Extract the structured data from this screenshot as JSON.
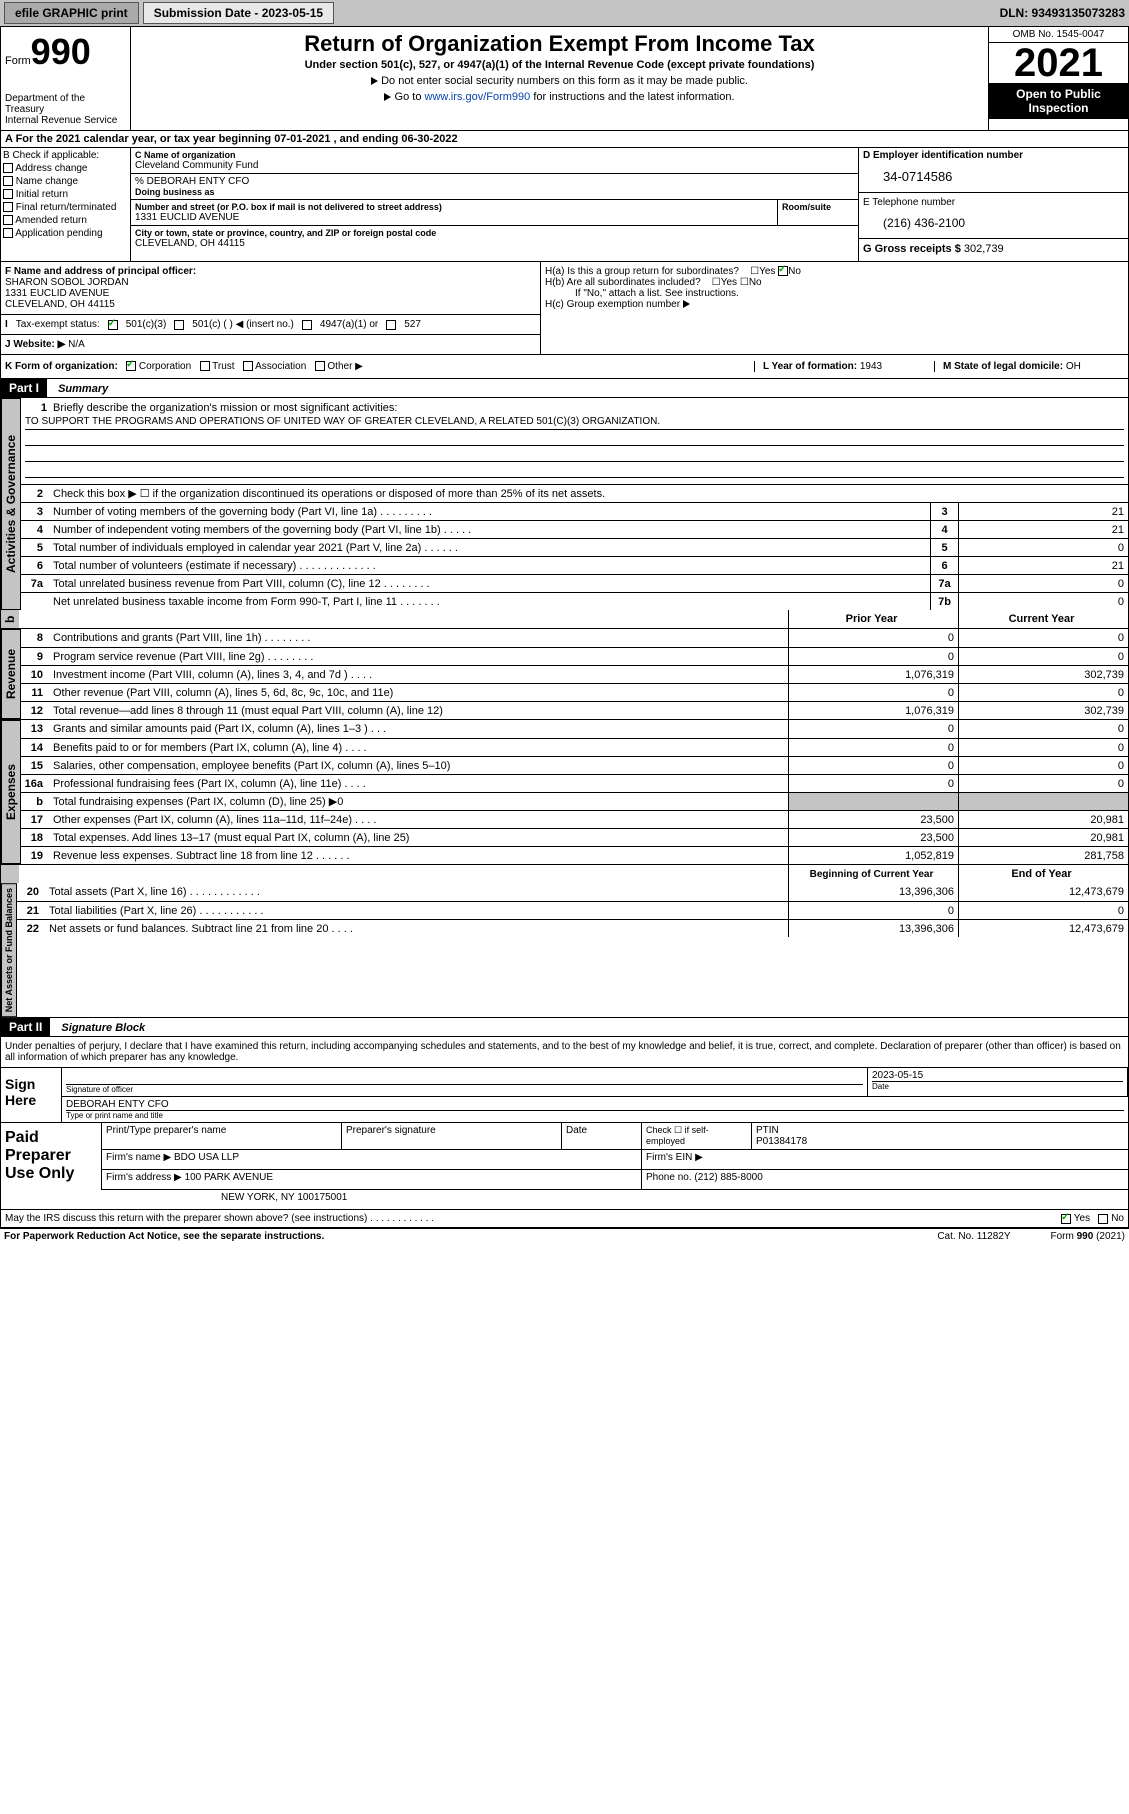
{
  "topbar": {
    "efile": "efile GRAPHIC print",
    "submission_label": "Submission Date - 2023-05-15",
    "dln": "DLN: 93493135073283"
  },
  "header": {
    "form_word": "Form",
    "form_num": "990",
    "dept": "Department of the Treasury\nInternal Revenue Service",
    "title": "Return of Organization Exempt From Income Tax",
    "subtitle": "Under section 501(c), 527, or 4947(a)(1) of the Internal Revenue Code (except private foundations)",
    "note1": "Do not enter social security numbers on this form as it may be made public.",
    "note2_a": "Go to ",
    "note2_link": "www.irs.gov/Form990",
    "note2_b": " for instructions and the latest information.",
    "omb": "OMB No. 1545-0047",
    "year": "2021",
    "public": "Open to Public Inspection"
  },
  "row_a": {
    "text": "A For the 2021 calendar year, or tax year beginning 07-01-2021   , and ending 06-30-2022"
  },
  "b": {
    "title": "B Check if applicable:",
    "items": [
      "Address change",
      "Name change",
      "Initial return",
      "Final return/terminated",
      "Amended return",
      "Application pending"
    ]
  },
  "c": {
    "name_label": "C Name of organization",
    "name": "Cleveland Community Fund",
    "care_of": "% DEBORAH ENTY CFO",
    "dba_label": "Doing business as",
    "street_label": "Number and street (or P.O. box if mail is not delivered to street address)",
    "room_label": "Room/suite",
    "street": "1331 EUCLID AVENUE",
    "city_label": "City or town, state or province, country, and ZIP or foreign postal code",
    "city": "CLEVELAND, OH  44115"
  },
  "d": {
    "ein_label": "D Employer identification number",
    "ein": "34-0714586",
    "phone_label": "E Telephone number",
    "phone": "(216) 436-2100",
    "gross_label": "G Gross receipts $ ",
    "gross": "302,739"
  },
  "f": {
    "label": "F Name and address of principal officer:",
    "name": "SHARON SOBOL JORDAN",
    "addr1": "1331 EUCLID AVENUE",
    "addr2": "CLEVELAND, OH  44115"
  },
  "h": {
    "a_label": "H(a)  Is this a group return for subordinates?",
    "b_label": "H(b)  Are all subordinates included?",
    "b_note": "If \"No,\" attach a list. See instructions.",
    "c_label": "H(c)  Group exemption number ",
    "yes": "Yes",
    "no": "No"
  },
  "i": {
    "label": "Tax-exempt status:",
    "opts": [
      "501(c)(3)",
      "501(c) (  ) ◀ (insert no.)",
      "4947(a)(1) or",
      "527"
    ]
  },
  "j": {
    "label": "Website: ▶",
    "val": "N/A"
  },
  "k": {
    "label": "K Form of organization:",
    "opts": [
      "Corporation",
      "Trust",
      "Association",
      "Other ▶"
    ],
    "l_label": "L Year of formation: ",
    "l_val": "1943",
    "m_label": "M State of legal domicile: ",
    "m_val": "OH"
  },
  "part1": {
    "header": "Part I",
    "title": "Summary"
  },
  "tabs": {
    "ag": "Activities & Governance",
    "rev": "Revenue",
    "exp": "Expenses",
    "na": "Net Assets or Fund Balances"
  },
  "mission": {
    "q": "Briefly describe the organization's mission or most significant activities:",
    "text": "TO SUPPORT THE PROGRAMS AND OPERATIONS OF UNITED WAY OF GREATER CLEVELAND, A RELATED 501(C)(3) ORGANIZATION."
  },
  "line2": "Check this box ▶ ☐  if the organization discontinued its operations or disposed of more than 25% of its net assets.",
  "lines_single": [
    {
      "n": "3",
      "d": "Number of voting members of the governing body (Part VI, line 1a)  .  .  .  .  .  .  .  .  .",
      "b": "3",
      "v": "21"
    },
    {
      "n": "4",
      "d": "Number of independent voting members of the governing body (Part VI, line 1b)  .  .  .  .  .",
      "b": "4",
      "v": "21"
    },
    {
      "n": "5",
      "d": "Total number of individuals employed in calendar year 2021 (Part V, line 2a)  .  .  .  .  .  .",
      "b": "5",
      "v": "0"
    },
    {
      "n": "6",
      "d": "Total number of volunteers (estimate if necessary)  .  .  .  .  .  .  .  .  .  .  .  .  .",
      "b": "6",
      "v": "21"
    },
    {
      "n": "7a",
      "d": "Total unrelated business revenue from Part VIII, column (C), line 12  .  .  .  .  .  .  .  .",
      "b": "7a",
      "v": "0"
    },
    {
      "n": "",
      "d": "Net unrelated business taxable income from Form 990-T, Part I, line 11  .  .  .  .  .  .  .",
      "b": "7b",
      "v": "0"
    }
  ],
  "col_headers": {
    "prior": "Prior Year",
    "current": "Current Year"
  },
  "rev_lines": [
    {
      "n": "8",
      "d": "Contributions and grants (Part VIII, line 1h)  .  .  .  .  .  .  .  .",
      "p": "0",
      "c": "0"
    },
    {
      "n": "9",
      "d": "Program service revenue (Part VIII, line 2g)  .  .  .  .  .  .  .  .",
      "p": "0",
      "c": "0"
    },
    {
      "n": "10",
      "d": "Investment income (Part VIII, column (A), lines 3, 4, and 7d )  .  .  .  .",
      "p": "1,076,319",
      "c": "302,739"
    },
    {
      "n": "11",
      "d": "Other revenue (Part VIII, column (A), lines 5, 6d, 8c, 9c, 10c, and 11e)",
      "p": "0",
      "c": "0"
    },
    {
      "n": "12",
      "d": "Total revenue—add lines 8 through 11 (must equal Part VIII, column (A), line 12)",
      "p": "1,076,319",
      "c": "302,739"
    }
  ],
  "exp_lines": [
    {
      "n": "13",
      "d": "Grants and similar amounts paid (Part IX, column (A), lines 1–3 )  .  .  .",
      "p": "0",
      "c": "0"
    },
    {
      "n": "14",
      "d": "Benefits paid to or for members (Part IX, column (A), line 4)  .  .  .  .",
      "p": "0",
      "c": "0"
    },
    {
      "n": "15",
      "d": "Salaries, other compensation, employee benefits (Part IX, column (A), lines 5–10)",
      "p": "0",
      "c": "0"
    },
    {
      "n": "16a",
      "d": "Professional fundraising fees (Part IX, column (A), line 11e)  .  .  .  .",
      "p": "0",
      "c": "0"
    },
    {
      "n": "b",
      "d": "Total fundraising expenses (Part IX, column (D), line 25) ▶0",
      "p": "grey",
      "c": "grey"
    },
    {
      "n": "17",
      "d": "Other expenses (Part IX, column (A), lines 11a–11d, 11f–24e)  .  .  .  .",
      "p": "23,500",
      "c": "20,981"
    },
    {
      "n": "18",
      "d": "Total expenses. Add lines 13–17 (must equal Part IX, column (A), line 25)",
      "p": "23,500",
      "c": "20,981"
    },
    {
      "n": "19",
      "d": "Revenue less expenses. Subtract line 18 from line 12  .  .  .  .  .  .",
      "p": "1,052,819",
      "c": "281,758"
    }
  ],
  "na_headers": {
    "beg": "Beginning of Current Year",
    "end": "End of Year"
  },
  "na_lines": [
    {
      "n": "20",
      "d": "Total assets (Part X, line 16)  .  .  .  .  .  .  .  .  .  .  .  .",
      "p": "13,396,306",
      "c": "12,473,679"
    },
    {
      "n": "21",
      "d": "Total liabilities (Part X, line 26)  .  .  .  .  .  .  .  .  .  .  .",
      "p": "0",
      "c": "0"
    },
    {
      "n": "22",
      "d": "Net assets or fund balances. Subtract line 21 from line 20  .  .  .  .",
      "p": "13,396,306",
      "c": "12,473,679"
    }
  ],
  "part2": {
    "header": "Part II",
    "title": "Signature Block"
  },
  "sig": {
    "decl": "Under penalties of perjury, I declare that I have examined this return, including accompanying schedules and statements, and to the best of my knowledge and belief, it is true, correct, and complete. Declaration of preparer (other than officer) is based on all information of which preparer has any knowledge.",
    "sign_here": "Sign Here",
    "sig_of_officer": "Signature of officer",
    "date_label": "Date",
    "date": "2023-05-15",
    "name": "DEBORAH ENTY CFO",
    "name_label": "Type or print name and title"
  },
  "ppuo": {
    "label": "Paid Preparer Use Only",
    "h1": "Print/Type preparer's name",
    "h2": "Preparer's signature",
    "h3": "Date",
    "h4a": "Check ☐ if self-employed",
    "h4b": "PTIN",
    "ptin": "P01384178",
    "firm_label": "Firm's name   ▶",
    "firm": "BDO USA LLP",
    "ein_label": "Firm's EIN ▶",
    "addr_label": "Firm's address ▶",
    "addr": "100 PARK AVENUE",
    "addr2": "NEW YORK, NY  100175001",
    "phone_label": "Phone no. ",
    "phone": "(212) 885-8000"
  },
  "discuss": {
    "q": "May the IRS discuss this return with the preparer shown above? (see instructions)  .  .  .  .  .  .  .  .  .  .  .  .",
    "yes": "Yes",
    "no": "No"
  },
  "footer": {
    "f1": "For Paperwork Reduction Act Notice, see the separate instructions.",
    "f2": "Cat. No. 11282Y",
    "f3": "Form 990 (2021)"
  }
}
